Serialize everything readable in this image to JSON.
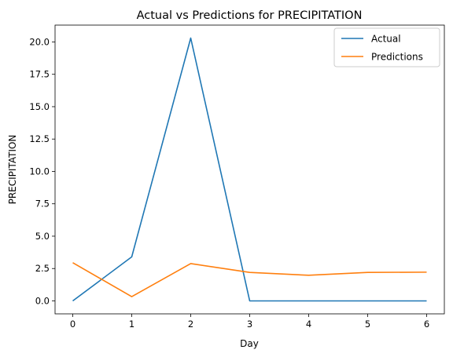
{
  "chart_data": {
    "type": "line",
    "title": "Actual vs Predictions for PRECIPITATION",
    "xlabel": "Day",
    "ylabel": "PRECIPITATION",
    "x": [
      0,
      1,
      2,
      3,
      4,
      5,
      6
    ],
    "xticks": [
      "0",
      "1",
      "2",
      "3",
      "4",
      "5",
      "6"
    ],
    "yticks": [
      "0.0",
      "2.5",
      "5.0",
      "7.5",
      "10.0",
      "12.5",
      "15.0",
      "17.5",
      "20.0"
    ],
    "xlim": [
      -0.3,
      6.3
    ],
    "ylim": [
      -1.0,
      21.3
    ],
    "grid": false,
    "legend_position": "top-right",
    "series": [
      {
        "name": "Actual",
        "color": "#1f77b4",
        "values": [
          0.0,
          3.4,
          20.3,
          0.0,
          0.0,
          0.0,
          0.0
        ]
      },
      {
        "name": "Predictions",
        "color": "#ff7f0e",
        "values": [
          2.95,
          0.33,
          2.88,
          2.2,
          1.98,
          2.2,
          2.22
        ]
      }
    ]
  }
}
